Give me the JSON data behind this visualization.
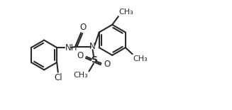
{
  "bg_color": "#ffffff",
  "line_color": "#2a2a2a",
  "line_width": 1.5,
  "font_size": 8.5,
  "fig_width": 3.27,
  "fig_height": 1.55,
  "dpi": 100,
  "xlim": [
    0,
    9.5
  ],
  "ylim": [
    0.5,
    5.5
  ]
}
